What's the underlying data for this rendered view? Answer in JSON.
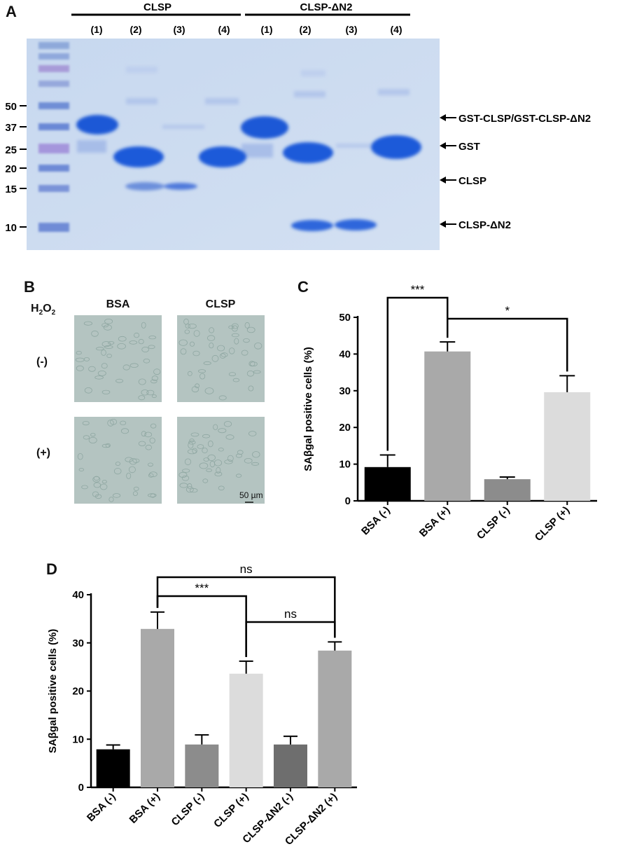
{
  "panels": {
    "a": {
      "letter": "A",
      "group_labels": [
        "CLSP",
        "CLSP-ΔN2"
      ],
      "lane_labels": [
        "(1)",
        "(2)",
        "(3)",
        "(4)",
        "(1)",
        "(2)",
        "(3)",
        "(4)"
      ],
      "marker_labels": [
        "50",
        "37",
        "25",
        "20",
        "15",
        "10"
      ],
      "band_labels": [
        "GST-CLSP/GST-CLSP-ΔN2",
        "GST",
        "CLSP",
        "CLSP-ΔN2"
      ]
    },
    "b": {
      "letter": "B",
      "h2o2_main": "H",
      "h2o2_sub1": "2",
      "h2o2_o": "O",
      "h2o2_sub2": "2",
      "col_labels": [
        "BSA",
        "CLSP"
      ],
      "row_labels": [
        "(-)",
        "(+)"
      ],
      "scale_bar": "50 µm",
      "colors": {
        "micrograph": "#b4c4c1",
        "cell": "#8fa7a2"
      }
    },
    "c": {
      "letter": "C"
    },
    "d": {
      "letter": "D"
    }
  },
  "chart_data": [
    {
      "type": "bar",
      "panel": "C",
      "categories": [
        "BSA (-)",
        "BSA (+)",
        "CLSP (-)",
        "CLSP (+)"
      ],
      "values": [
        9.2,
        40.7,
        5.9,
        29.6
      ],
      "errors": [
        3.3,
        2.6,
        0.6,
        4.5
      ],
      "colors": [
        "#000000",
        "#a9a9a9",
        "#8c8c8c",
        "#dcdcdc"
      ],
      "ylabel": "SAβgal positive cells (%)",
      "ylim": [
        0,
        50
      ],
      "yticks": [
        "0",
        "10",
        "20",
        "30",
        "40",
        "50"
      ],
      "significance": [
        {
          "pair": [
            0,
            1
          ],
          "label": "***"
        },
        {
          "pair": [
            1,
            3
          ],
          "label": "*"
        }
      ]
    },
    {
      "type": "bar",
      "panel": "D",
      "categories": [
        "BSA (-)",
        "BSA (+)",
        "CLSP (-)",
        "CLSP (+)",
        "CLSP-ΔN2 (-)",
        "CLSP-ΔN2 (+)"
      ],
      "values": [
        7.9,
        32.9,
        8.9,
        23.6,
        8.9,
        28.4
      ],
      "errors": [
        0.9,
        3.5,
        2.0,
        2.6,
        1.7,
        1.8
      ],
      "colors": [
        "#000000",
        "#a9a9a9",
        "#8c8c8c",
        "#dcdcdc",
        "#6e6e6e",
        "#a9a9a9"
      ],
      "ylabel": "SAβgal positive cells (%)",
      "ylim": [
        0,
        40
      ],
      "yticks": [
        "0",
        "10",
        "20",
        "30",
        "40"
      ],
      "significance": [
        {
          "pair": [
            1,
            5
          ],
          "label": "ns"
        },
        {
          "pair": [
            1,
            3
          ],
          "label": "***"
        },
        {
          "pair": [
            3,
            5
          ],
          "label": "ns"
        }
      ]
    }
  ]
}
